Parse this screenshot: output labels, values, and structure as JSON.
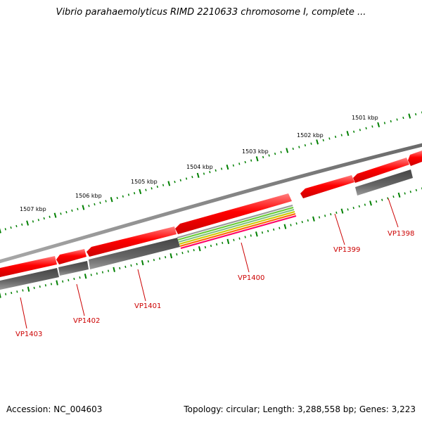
{
  "title": "Vibrio parahaemolyticus RIMD 2210633 chromosome I, complete ...",
  "footer": {
    "accession": "Accession: NC_004603",
    "topology": "Topology: circular; Length: 3,288,558 bp; Genes: 3,223"
  },
  "colors": {
    "backbone": "#808080",
    "cds_forward": "#ff0000",
    "gene_reverse": "#555555",
    "tick": "#008000",
    "label": "#cc0000"
  },
  "kbp_labels": [
    "1501 kbp",
    "1502 kbp",
    "1503 kbp",
    "1504 kbp",
    "1505 kbp",
    "1506 kbp",
    "1507 kbp"
  ],
  "genes": [
    {
      "id": "VP1398"
    },
    {
      "id": "VP1399"
    },
    {
      "id": "VP1400"
    },
    {
      "id": "VP1401"
    },
    {
      "id": "VP1402"
    },
    {
      "id": "VP1403"
    }
  ]
}
